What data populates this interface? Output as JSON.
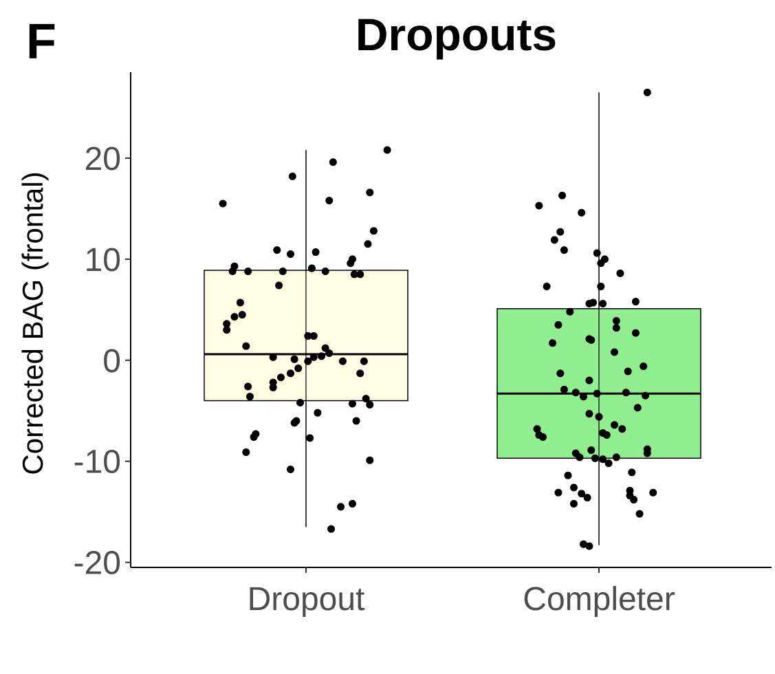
{
  "panel_label": "F",
  "chart_data": {
    "type": "box",
    "title": "Dropouts",
    "xlabel": "",
    "ylabel": "Corrected BAG (frontal)",
    "categories": [
      "Dropout",
      "Completer"
    ],
    "ylim": [
      -20.5,
      28.5
    ],
    "yticks": [
      -20,
      -10,
      0,
      10,
      20
    ],
    "ytick_labels": [
      "-20",
      "-10",
      "0",
      "10",
      "20"
    ],
    "grid": false,
    "colors": {
      "Dropout": "#fffde4",
      "Completer": "#90ee90",
      "points": "#000000",
      "outline": "#000000"
    },
    "boxes": [
      {
        "category": "Dropout",
        "min": -16.5,
        "q1": -4.0,
        "median": 0.6,
        "q3": 8.9,
        "max": 20.8
      },
      {
        "category": "Completer",
        "min": -18.3,
        "q1": -9.7,
        "median": -3.3,
        "q3": 5.1,
        "max": 26.5
      }
    ],
    "points": {
      "Dropout": [
        {
          "jitter": -0.43,
          "y": 15.5
        },
        {
          "jitter": -0.07,
          "y": 18.2
        },
        {
          "jitter": 0.14,
          "y": 19.6
        },
        {
          "jitter": 0.42,
          "y": 20.8
        },
        {
          "jitter": 0.33,
          "y": 16.6
        },
        {
          "jitter": 0.12,
          "y": 15.8
        },
        {
          "jitter": 0.35,
          "y": 12.8
        },
        {
          "jitter": 0.32,
          "y": 11.5
        },
        {
          "jitter": -0.15,
          "y": 10.9
        },
        {
          "jitter": -0.08,
          "y": 10.5
        },
        {
          "jitter": 0.05,
          "y": 10.7
        },
        {
          "jitter": 0.24,
          "y": 10.0
        },
        {
          "jitter": 0.23,
          "y": 9.6
        },
        {
          "jitter": -0.37,
          "y": 9.3
        },
        {
          "jitter": -0.38,
          "y": 8.8
        },
        {
          "jitter": -0.3,
          "y": 8.8
        },
        {
          "jitter": -0.12,
          "y": 8.8
        },
        {
          "jitter": 0.03,
          "y": 9.1
        },
        {
          "jitter": 0.1,
          "y": 8.8
        },
        {
          "jitter": 0.25,
          "y": 8.5
        },
        {
          "jitter": 0.28,
          "y": 8.5
        },
        {
          "jitter": -0.14,
          "y": 7.4
        },
        {
          "jitter": -0.34,
          "y": 5.7
        },
        {
          "jitter": -0.33,
          "y": 4.5
        },
        {
          "jitter": -0.37,
          "y": 4.3
        },
        {
          "jitter": -0.41,
          "y": 3.6
        },
        {
          "jitter": -0.41,
          "y": 3.0
        },
        {
          "jitter": 0.01,
          "y": 2.4
        },
        {
          "jitter": 0.04,
          "y": 2.4
        },
        {
          "jitter": -0.31,
          "y": 1.4
        },
        {
          "jitter": 0.1,
          "y": 1.2
        },
        {
          "jitter": 0.12,
          "y": 0.7
        },
        {
          "jitter": 0.08,
          "y": 0.4
        },
        {
          "jitter": 0.04,
          "y": 0.3
        },
        {
          "jitter": -0.17,
          "y": 0.3
        },
        {
          "jitter": -0.06,
          "y": 0.1
        },
        {
          "jitter": 0.01,
          "y": -0.1
        },
        {
          "jitter": 0.19,
          "y": -0.1
        },
        {
          "jitter": 0.3,
          "y": -0.1
        },
        {
          "jitter": -0.04,
          "y": -0.8
        },
        {
          "jitter": -0.08,
          "y": -1.3
        },
        {
          "jitter": -0.13,
          "y": -1.7
        },
        {
          "jitter": 0.28,
          "y": -1.3
        },
        {
          "jitter": -0.17,
          "y": -2.2
        },
        {
          "jitter": -0.17,
          "y": -2.7
        },
        {
          "jitter": -0.3,
          "y": -2.6
        },
        {
          "jitter": -0.29,
          "y": -3.6
        },
        {
          "jitter": -0.03,
          "y": -4.2
        },
        {
          "jitter": 0.24,
          "y": -4.3
        },
        {
          "jitter": 0.33,
          "y": -4.4
        },
        {
          "jitter": 0.31,
          "y": -3.8
        },
        {
          "jitter": 0.06,
          "y": -5.2
        },
        {
          "jitter": -0.05,
          "y": -6.0
        },
        {
          "jitter": -0.06,
          "y": -6.2
        },
        {
          "jitter": 0.26,
          "y": -6.0
        },
        {
          "jitter": 0.02,
          "y": -7.7
        },
        {
          "jitter": -0.26,
          "y": -7.3
        },
        {
          "jitter": -0.27,
          "y": -7.6
        },
        {
          "jitter": -0.31,
          "y": -9.1
        },
        {
          "jitter": 0.33,
          "y": -9.9
        },
        {
          "jitter": -0.08,
          "y": -10.8
        },
        {
          "jitter": 0.18,
          "y": -14.5
        },
        {
          "jitter": 0.24,
          "y": -14.2
        },
        {
          "jitter": 0.13,
          "y": -16.7
        }
      ],
      "Completer": [
        {
          "jitter": 0.25,
          "y": 26.5
        },
        {
          "jitter": -0.19,
          "y": 16.3
        },
        {
          "jitter": -0.31,
          "y": 15.3
        },
        {
          "jitter": -0.09,
          "y": 14.6
        },
        {
          "jitter": -0.2,
          "y": 12.7
        },
        {
          "jitter": -0.23,
          "y": 11.9
        },
        {
          "jitter": -0.18,
          "y": 10.9
        },
        {
          "jitter": -0.01,
          "y": 10.6
        },
        {
          "jitter": 0.03,
          "y": 10.0
        },
        {
          "jitter": 0.01,
          "y": 9.6
        },
        {
          "jitter": 0.11,
          "y": 8.6
        },
        {
          "jitter": -0.27,
          "y": 7.3
        },
        {
          "jitter": 0.01,
          "y": 7.3
        },
        {
          "jitter": -0.05,
          "y": 5.6
        },
        {
          "jitter": -0.03,
          "y": 5.7
        },
        {
          "jitter": 0.02,
          "y": 5.6
        },
        {
          "jitter": 0.19,
          "y": 5.8
        },
        {
          "jitter": -0.15,
          "y": 4.8
        },
        {
          "jitter": 0.09,
          "y": 3.9
        },
        {
          "jitter": 0.09,
          "y": 3.2
        },
        {
          "jitter": -0.21,
          "y": 3.5
        },
        {
          "jitter": 0.19,
          "y": 2.7
        },
        {
          "jitter": -0.05,
          "y": 2.1
        },
        {
          "jitter": -0.04,
          "y": 2.0
        },
        {
          "jitter": -0.24,
          "y": 1.7
        },
        {
          "jitter": 0.08,
          "y": 0.8
        },
        {
          "jitter": 0.23,
          "y": -0.6
        },
        {
          "jitter": 0.15,
          "y": -1.1
        },
        {
          "jitter": -0.2,
          "y": -1.3
        },
        {
          "jitter": -0.05,
          "y": -2.0
        },
        {
          "jitter": -0.18,
          "y": -2.9
        },
        {
          "jitter": -0.12,
          "y": -3.2
        },
        {
          "jitter": -0.08,
          "y": -3.6
        },
        {
          "jitter": -0.01,
          "y": -3.3
        },
        {
          "jitter": 0.14,
          "y": -3.2
        },
        {
          "jitter": 0.24,
          "y": -3.5
        },
        {
          "jitter": 0.2,
          "y": -4.7
        },
        {
          "jitter": -0.05,
          "y": -5.3
        },
        {
          "jitter": 0.0,
          "y": -5.6
        },
        {
          "jitter": 0.08,
          "y": -6.4
        },
        {
          "jitter": 0.12,
          "y": -6.8
        },
        {
          "jitter": 0.02,
          "y": -7.2
        },
        {
          "jitter": 0.04,
          "y": -7.4
        },
        {
          "jitter": -0.32,
          "y": -6.8
        },
        {
          "jitter": -0.31,
          "y": -7.4
        },
        {
          "jitter": -0.29,
          "y": -7.6
        },
        {
          "jitter": -0.12,
          "y": -9.2
        },
        {
          "jitter": -0.1,
          "y": -9.6
        },
        {
          "jitter": -0.04,
          "y": -8.9
        },
        {
          "jitter": -0.02,
          "y": -9.7
        },
        {
          "jitter": 0.02,
          "y": -9.8
        },
        {
          "jitter": 0.05,
          "y": -10.2
        },
        {
          "jitter": 0.09,
          "y": -9.6
        },
        {
          "jitter": 0.25,
          "y": -8.8
        },
        {
          "jitter": 0.25,
          "y": -9.2
        },
        {
          "jitter": -0.16,
          "y": -11.4
        },
        {
          "jitter": 0.17,
          "y": -11.1
        },
        {
          "jitter": -0.21,
          "y": -13.1
        },
        {
          "jitter": -0.13,
          "y": -12.6
        },
        {
          "jitter": -0.09,
          "y": -13.2
        },
        {
          "jitter": -0.06,
          "y": -13.6
        },
        {
          "jitter": 0.16,
          "y": -12.9
        },
        {
          "jitter": 0.16,
          "y": -13.4
        },
        {
          "jitter": 0.18,
          "y": -13.8
        },
        {
          "jitter": 0.21,
          "y": -15.2
        },
        {
          "jitter": 0.28,
          "y": -13.1
        },
        {
          "jitter": -0.13,
          "y": -14.2
        },
        {
          "jitter": -0.08,
          "y": -18.2
        },
        {
          "jitter": -0.05,
          "y": -18.4
        }
      ]
    }
  }
}
